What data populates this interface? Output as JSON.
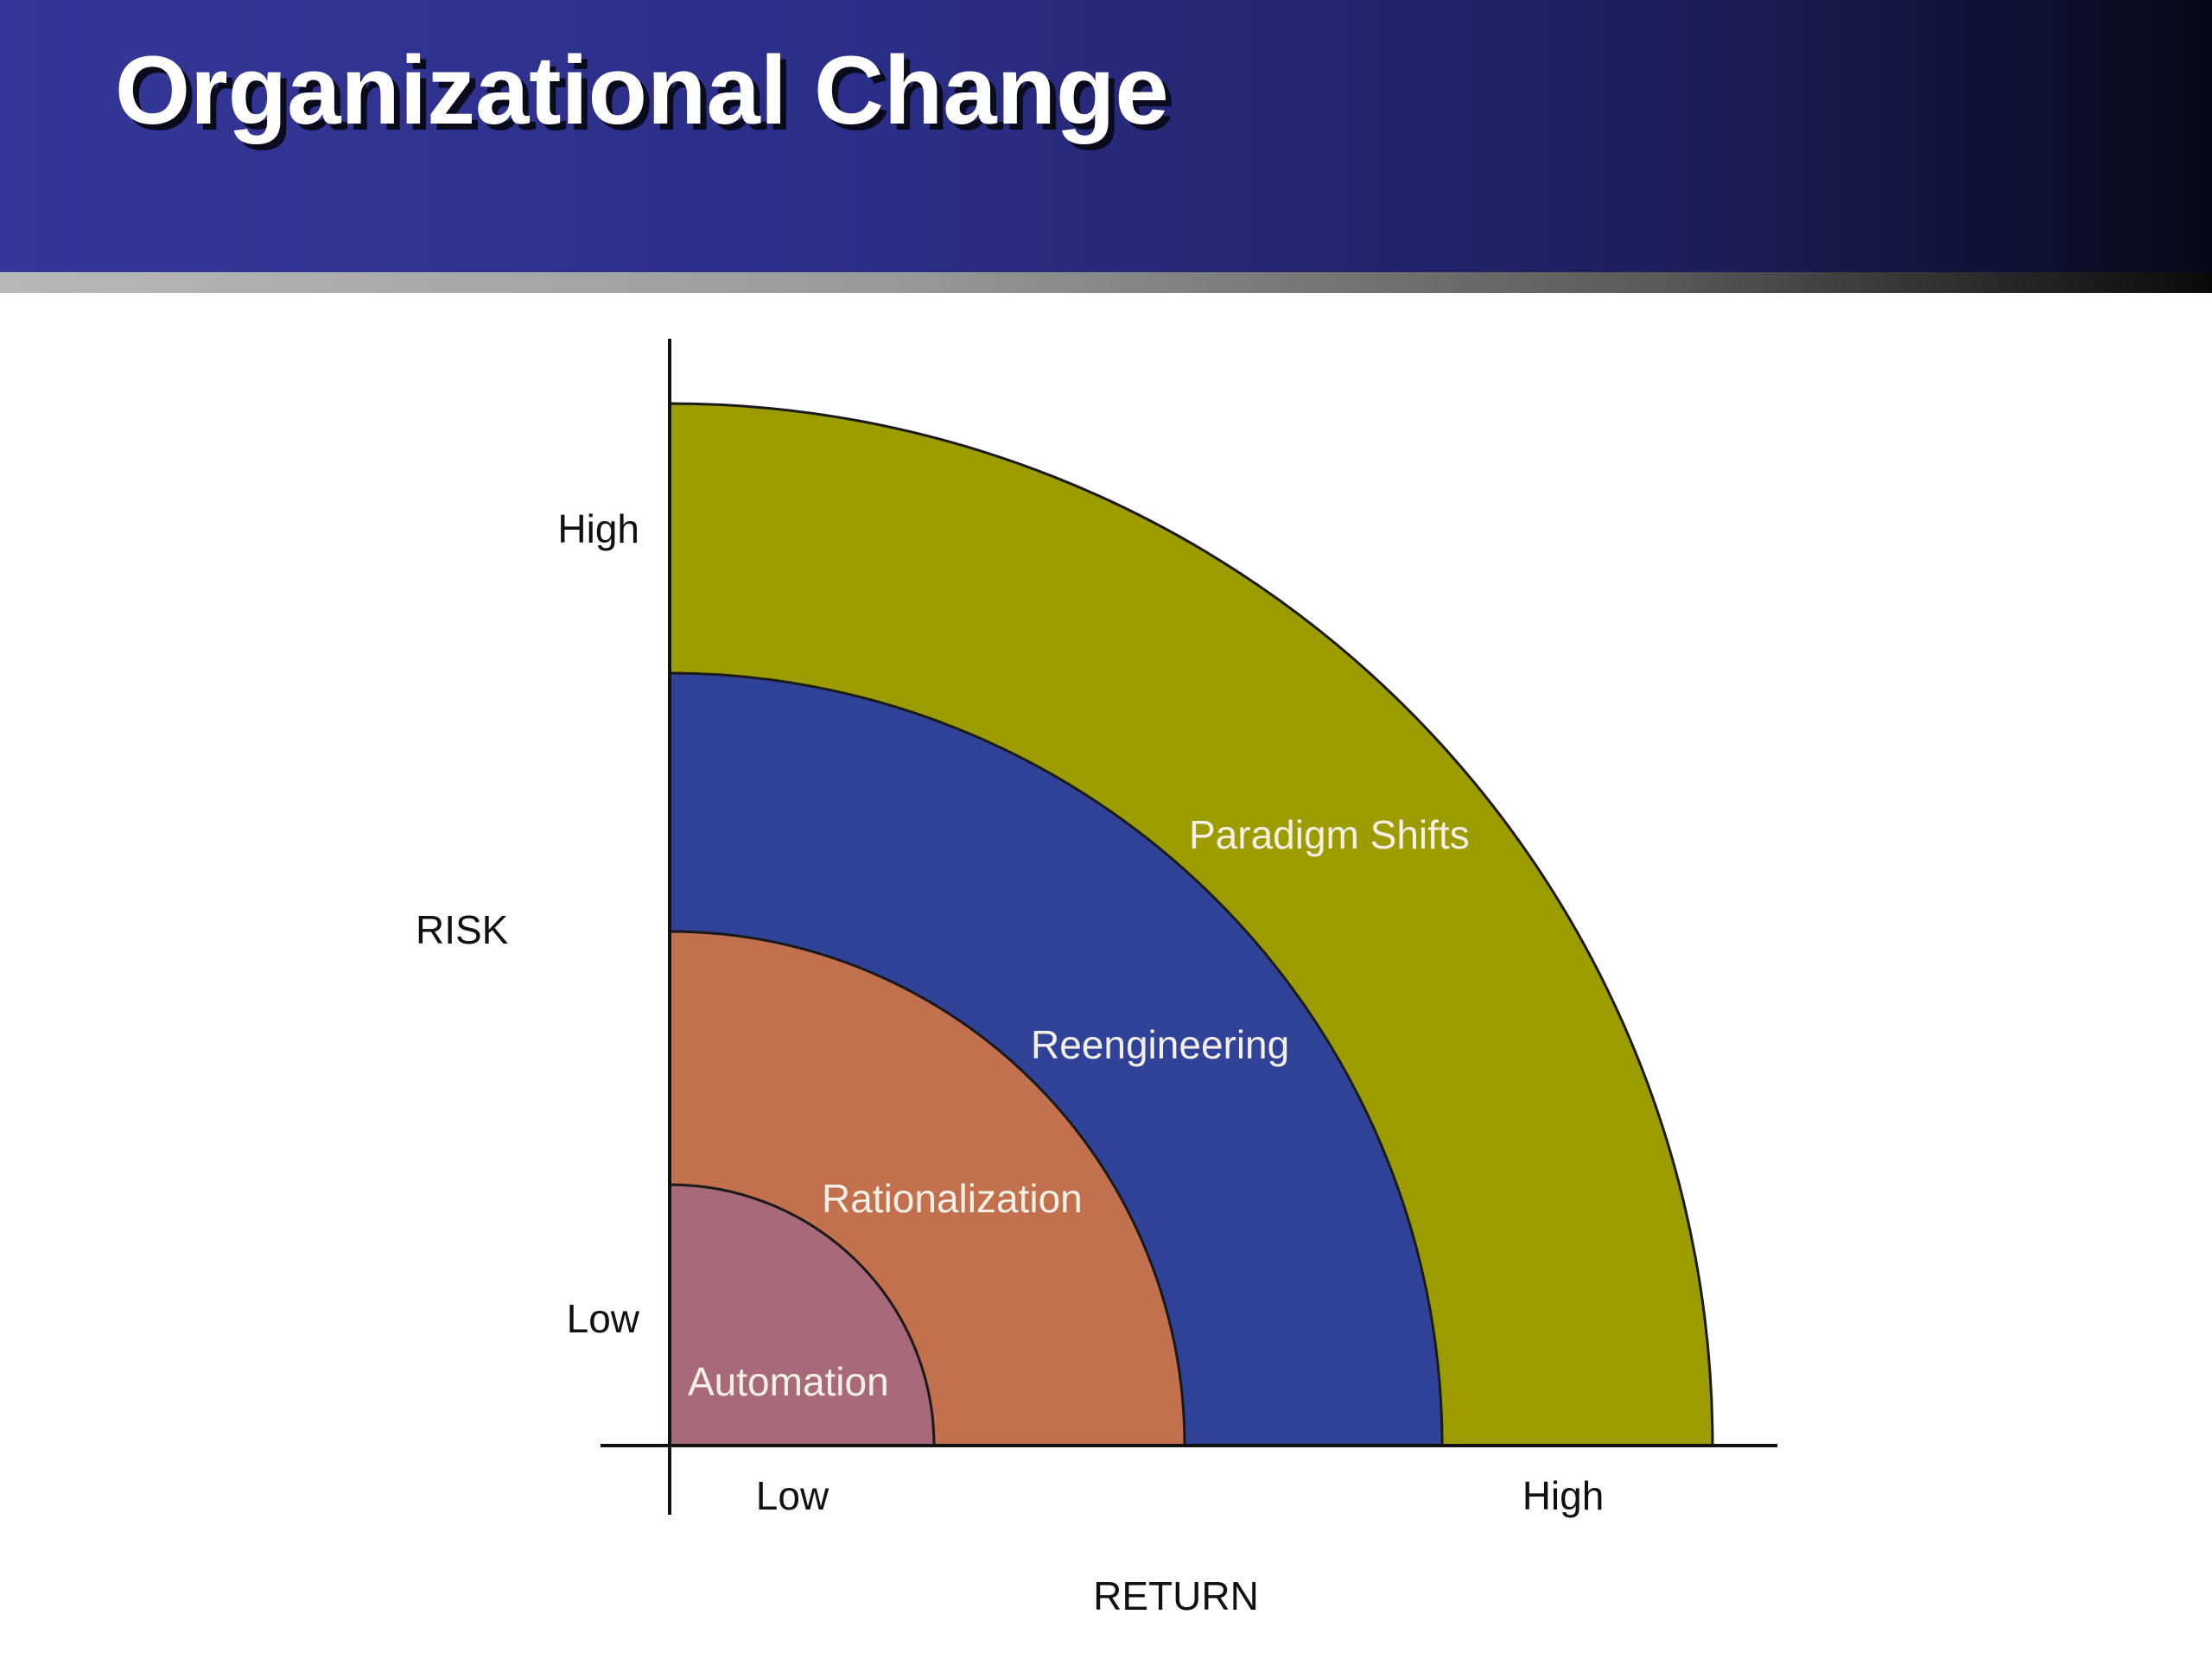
{
  "slide": {
    "title": "Organizational Change"
  },
  "diagram": {
    "y_axis_label": "RISK",
    "x_axis_label": "RETURN",
    "y_ticks": {
      "high": "High",
      "low": "Low"
    },
    "x_ticks": {
      "low": "Low",
      "high": "High"
    },
    "regions": [
      {
        "label": "Automation",
        "color": "#a86a7a"
      },
      {
        "label": "Rationalization",
        "color": "#c2704e"
      },
      {
        "label": "Reengineering",
        "color": "#314399"
      },
      {
        "label": "Paradigm Shifts",
        "color": "#9c9c00"
      }
    ]
  }
}
